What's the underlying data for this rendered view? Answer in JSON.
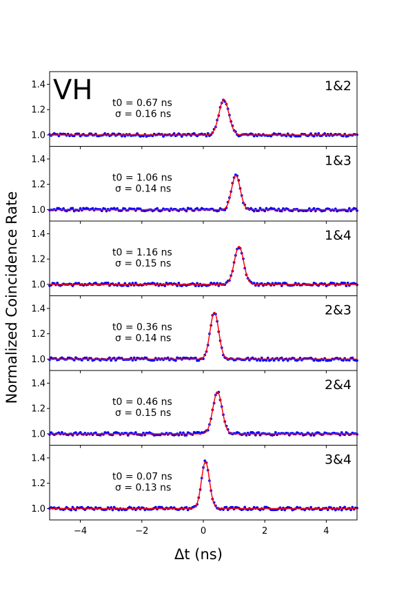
{
  "figure": {
    "label": "VH",
    "ylabel": "Normalized Coincidence Rate",
    "xlabel": "Δt (ns)"
  },
  "chart_data": {
    "type": "scatter",
    "xlim": [
      -5,
      5
    ],
    "ylim": [
      0.91,
      1.5
    ],
    "x_ticks": [
      -4,
      -2,
      0,
      2,
      4
    ],
    "x_tick_labels": [
      "−4",
      "−2",
      "0",
      "2",
      "4"
    ],
    "y_ticks": [
      1.0,
      1.2,
      1.4
    ],
    "y_tick_labels": [
      "1.0",
      "1.2",
      "1.4"
    ],
    "point_color": "#0000ff",
    "fit_color": "#ff0000",
    "grid": false,
    "panels": [
      {
        "label": "1&2",
        "t0_text": "t0 = 0.67 ns",
        "sigma_text": "σ  = 0.16 ns",
        "t0": 0.67,
        "sigma": 0.16,
        "baseline": 1.0,
        "peak": 1.28
      },
      {
        "label": "1&3",
        "t0_text": "t0 = 1.06 ns",
        "sigma_text": "σ  = 0.14 ns",
        "t0": 1.06,
        "sigma": 0.14,
        "baseline": 1.0,
        "peak": 1.27
      },
      {
        "label": "1&4",
        "t0_text": "t0 = 1.16 ns",
        "sigma_text": "σ  = 0.15 ns",
        "t0": 1.16,
        "sigma": 0.15,
        "baseline": 1.0,
        "peak": 1.3
      },
      {
        "label": "2&3",
        "t0_text": "t0 = 0.36 ns",
        "sigma_text": "σ  = 0.14 ns",
        "t0": 0.36,
        "sigma": 0.14,
        "baseline": 1.0,
        "peak": 1.37
      },
      {
        "label": "2&4",
        "t0_text": "t0 = 0.46 ns",
        "sigma_text": "σ  = 0.15 ns",
        "t0": 0.46,
        "sigma": 0.15,
        "baseline": 1.0,
        "peak": 1.33
      },
      {
        "label": "3&4",
        "t0_text": "t0 = 0.07 ns",
        "sigma_text": "σ  = 0.13 ns",
        "t0": 0.07,
        "sigma": 0.13,
        "baseline": 1.0,
        "peak": 1.37
      }
    ]
  }
}
